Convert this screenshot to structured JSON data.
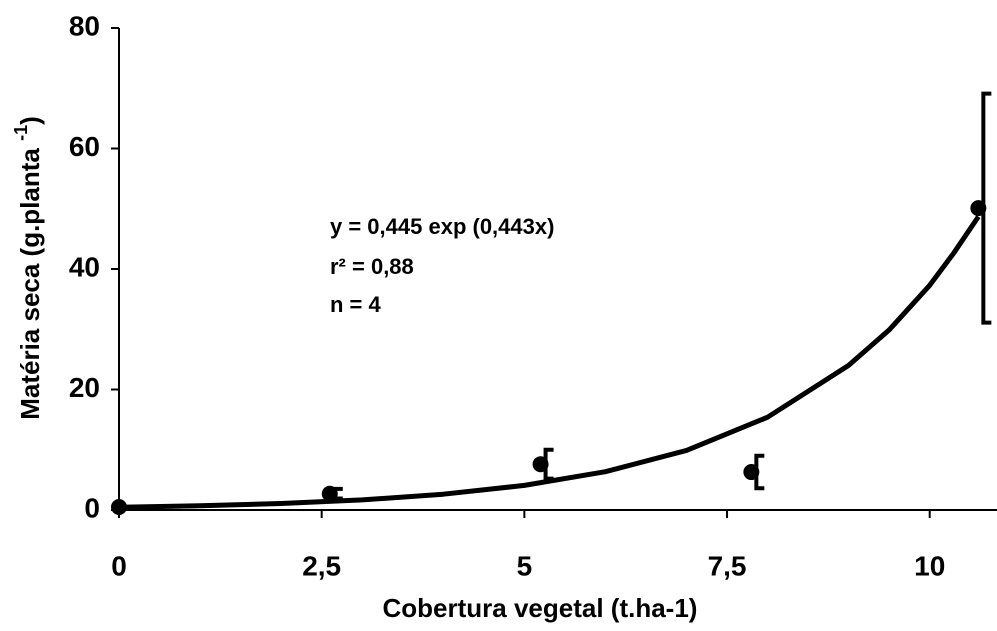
{
  "chart_data": {
    "type": "scatter",
    "x_label": "Cobertura vegetal (t.ha-1)",
    "y_label": [
      "Matéria seca (g.planta ",
      "-1",
      ")"
    ],
    "annotations": [
      "y = 0,445 exp (0,443x)",
      "r² = 0,88",
      "n = 4"
    ],
    "x": [
      0,
      2.6,
      5.2,
      7.8,
      10.6
    ],
    "values": [
      0.5,
      2.7,
      7.6,
      6.3,
      50.1
    ],
    "errors": [
      0,
      0.8,
      2.4,
      2.7,
      19
    ],
    "color": "#000000",
    "fit": {
      "x": [
        0,
        1,
        2,
        3,
        4,
        5,
        6,
        7,
        8,
        9,
        9.5,
        10,
        10.3,
        10.6
      ],
      "values": [
        0.445,
        0.69,
        1.08,
        1.68,
        2.62,
        4.08,
        6.35,
        9.89,
        15.4,
        24.0,
        29.9,
        37.3,
        42.7,
        48.7
      ]
    },
    "xlim": [
      0,
      10.83
    ],
    "ylim": [
      0,
      80
    ],
    "xticks": [
      0,
      {
        "value": 2.5,
        "label": "2,5"
      },
      5,
      {
        "value": 7.5,
        "label": "7,5"
      },
      10
    ],
    "yticks": [
      0,
      20,
      40,
      60,
      80
    ]
  }
}
